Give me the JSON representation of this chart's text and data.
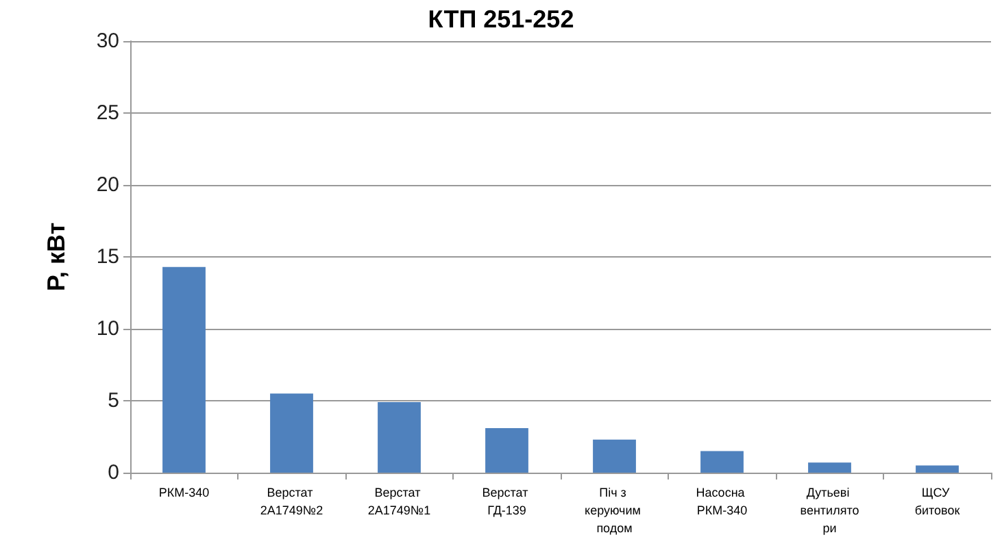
{
  "chart_data": {
    "type": "bar",
    "title": "КТП 251-252",
    "ylabel": "P, кВт",
    "categories": [
      "РКМ-340",
      "Верстат 2А1749№2",
      "Верстат 2А1749№1",
      "Верстат ГД-139",
      "Піч з керуючим подом",
      "Насосна РКМ-340",
      "Дутьеві вентилятори",
      "ЩСУ битовок"
    ],
    "values": [
      14.3,
      5.5,
      4.9,
      3.1,
      2.3,
      1.5,
      0.7,
      0.5
    ],
    "color": "#4f81bd",
    "ylim": [
      0,
      30
    ],
    "yticks": [
      0,
      5,
      10,
      15,
      20,
      25,
      30
    ],
    "grid": "y"
  }
}
